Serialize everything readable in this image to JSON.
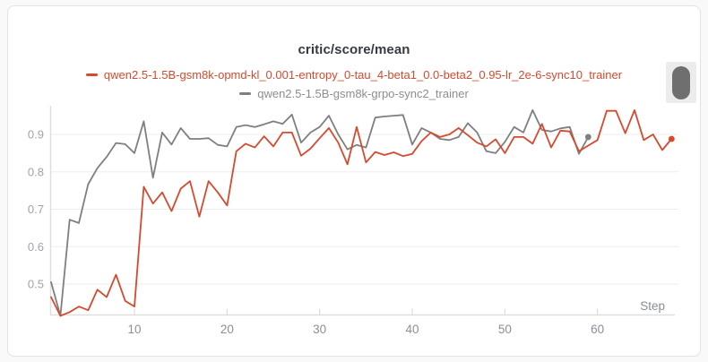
{
  "panel": {
    "title": "critic/score/mean"
  },
  "chart_data": {
    "type": "line",
    "title": "critic/score/mean",
    "xlabel": "Step",
    "ylabel": "",
    "x_ticks": [
      10,
      20,
      30,
      40,
      50,
      60
    ],
    "y_ticks": [
      0.5,
      0.6,
      0.7,
      0.8,
      0.9
    ],
    "x_range_visible": [
      1,
      69
    ],
    "y_range_visible": [
      0.42,
      0.97
    ],
    "grid": "horizontal-only",
    "legend_position": "top-center",
    "series": [
      {
        "name": "qwen2.5-1.5B-gsm8k-opmd-kl_0.001-entropy_0-tau_4-beta1_0.0-beta2_0.95-lr_2e-6-sync10_trainer",
        "color": "#d7492e",
        "label_color": "#d7492e",
        "x_start": 1,
        "x_step": 1,
        "end_marker": true,
        "values": [
          0.465,
          0.415,
          0.425,
          0.44,
          0.43,
          0.485,
          0.465,
          0.525,
          0.455,
          0.44,
          0.76,
          0.715,
          0.745,
          0.695,
          0.755,
          0.775,
          0.68,
          0.775,
          0.745,
          0.71,
          0.855,
          0.875,
          0.865,
          0.895,
          0.868,
          0.905,
          0.905,
          0.843,
          0.862,
          0.89,
          0.917,
          0.878,
          0.82,
          0.92,
          0.825,
          0.853,
          0.845,
          0.852,
          0.842,
          0.848,
          0.882,
          0.905,
          0.893,
          0.9,
          0.917,
          0.898,
          0.878,
          0.868,
          0.887,
          0.85,
          0.893,
          0.893,
          0.875,
          0.928,
          0.865,
          0.91,
          0.908,
          0.855,
          0.87,
          0.885,
          0.963,
          0.963,
          0.903,
          0.965,
          0.885,
          0.9,
          0.858,
          0.888
        ]
      },
      {
        "name": "qwen2.5-1.5B-gsm8k-grpo-sync2_trainer",
        "color": "#7f7f7f",
        "label_color": "#8d8d8d",
        "x_start": 1,
        "x_step": 1,
        "end_marker": true,
        "values": [
          0.505,
          0.415,
          0.672,
          0.663,
          0.767,
          0.81,
          0.84,
          0.877,
          0.874,
          0.85,
          0.935,
          0.784,
          0.905,
          0.873,
          0.917,
          0.888,
          0.888,
          0.89,
          0.872,
          0.868,
          0.92,
          0.925,
          0.92,
          0.927,
          0.935,
          0.928,
          0.953,
          0.878,
          0.905,
          0.92,
          0.95,
          0.9,
          0.86,
          0.872,
          0.865,
          0.945,
          0.948,
          0.95,
          0.952,
          0.873,
          0.917,
          0.905,
          0.888,
          0.885,
          0.893,
          0.93,
          0.905,
          0.855,
          0.85,
          0.88,
          0.92,
          0.905,
          0.965,
          0.912,
          0.908,
          0.916,
          0.92,
          0.848,
          0.893
        ]
      }
    ]
  },
  "controls": {
    "scrollbar": {
      "name": "vertical-scrollbar",
      "thumb_color": "#6f6f6f",
      "track_color": "#ececec"
    }
  },
  "colors": {
    "card_background": "#ffffff",
    "card_border": "#e3e3e5",
    "gridline": "#eeeeef",
    "axis_line": "#dfdfe1",
    "y_tick_label": "#9ea3ad",
    "x_tick_label": "#8a8e9a",
    "title_text": "#363b42"
  }
}
